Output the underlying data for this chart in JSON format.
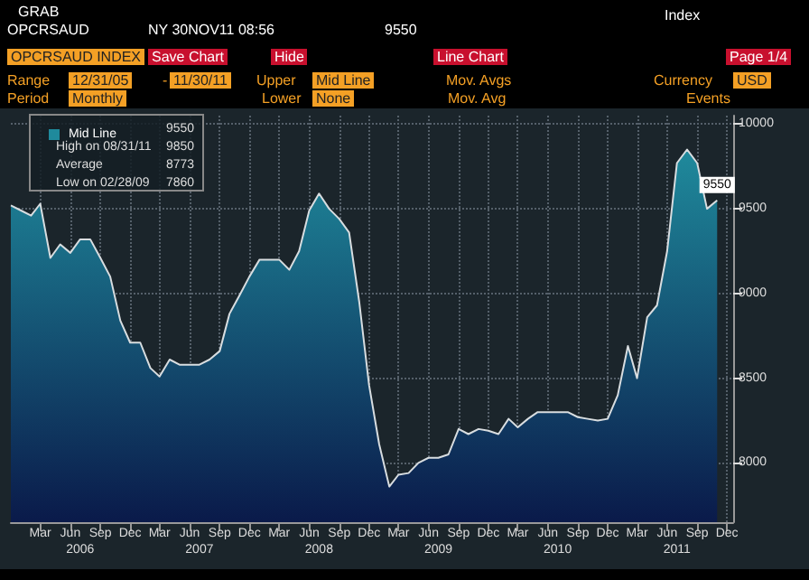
{
  "chart_data": {
    "type": "area",
    "title": "OPCRSAUD INDEX",
    "annotations": [
      "GRAB",
      "OPCRSAUD",
      "NY 30NOV11 08:56",
      "9550",
      "Index",
      "Save Chart",
      "Hide",
      "Line Chart",
      "Page 1/4",
      "Range",
      "12/31/05",
      "-",
      "11/30/11",
      "Upper",
      "Mid Line",
      "Mov. Avgs",
      "Currency",
      "USD",
      "Period",
      "Monthly",
      "Lower",
      "None",
      "Mov. Avg",
      "Events",
      "9550",
      "High on 08/31/11",
      "9850",
      "Average",
      "8773",
      "Low on 02/28/09",
      "7860"
    ],
    "x": [
      "2005-12",
      "2006-01",
      "2006-02",
      "2006-03",
      "2006-04",
      "2006-05",
      "2006-06",
      "2006-07",
      "2006-08",
      "2006-09",
      "2006-10",
      "2006-11",
      "2006-12",
      "2007-01",
      "2007-02",
      "2007-03",
      "2007-04",
      "2007-05",
      "2007-06",
      "2007-07",
      "2007-08",
      "2007-09",
      "2007-10",
      "2007-11",
      "2007-12",
      "2008-01",
      "2008-02",
      "2008-03",
      "2008-04",
      "2008-05",
      "2008-06",
      "2008-07",
      "2008-08",
      "2008-09",
      "2008-10",
      "2008-11",
      "2008-12",
      "2009-01",
      "2009-02",
      "2009-03",
      "2009-04",
      "2009-05",
      "2009-06",
      "2009-07",
      "2009-08",
      "2009-09",
      "2009-10",
      "2009-11",
      "2009-12",
      "2010-01",
      "2010-02",
      "2010-03",
      "2010-04",
      "2010-05",
      "2010-06",
      "2010-07",
      "2010-08",
      "2010-09",
      "2010-10",
      "2010-11",
      "2010-12",
      "2011-01",
      "2011-02",
      "2011-03",
      "2011-04",
      "2011-05",
      "2011-06",
      "2011-07",
      "2011-08",
      "2011-09",
      "2011-10",
      "2011-11"
    ],
    "series": [
      {
        "name": "Mid Line",
        "color": "#1f8a9c",
        "values": [
          9520,
          9490,
          9460,
          9530,
          9210,
          9290,
          9240,
          9320,
          9320,
          9210,
          9100,
          8840,
          8710,
          8710,
          8560,
          8510,
          8610,
          8580,
          8580,
          8580,
          8610,
          8660,
          8880,
          8990,
          9100,
          9200,
          9200,
          9200,
          9140,
          9250,
          9490,
          9590,
          9500,
          9440,
          9360,
          8950,
          8460,
          8110,
          7860,
          7930,
          7940,
          8000,
          8030,
          8030,
          8050,
          8200,
          8170,
          8200,
          8190,
          8170,
          8260,
          8210,
          8260,
          8300,
          8300,
          8300,
          8300,
          8270,
          8260,
          8250,
          8260,
          8400,
          8690,
          8500,
          8860,
          8930,
          9250,
          9770,
          9850,
          9770,
          9500,
          9550
        ],
        "value_labels": [
          null,
          null,
          null,
          null,
          null,
          null,
          null,
          null,
          null,
          null,
          null,
          null,
          null,
          null,
          null,
          null,
          null,
          null,
          null,
          null,
          null,
          null,
          null,
          null,
          null,
          null,
          null,
          null,
          null,
          null,
          null,
          null,
          null,
          null,
          null,
          null,
          null,
          null,
          null,
          null,
          null,
          null,
          null,
          null,
          null,
          null,
          null,
          null,
          null,
          null,
          null,
          null,
          null,
          null,
          null,
          null,
          null,
          null,
          null,
          null,
          null,
          null,
          null,
          null,
          null,
          null,
          null,
          null,
          null,
          null,
          null,
          "9550"
        ]
      }
    ],
    "xlim": [
      "2005-12",
      "2011-12-20"
    ],
    "xticks": [
      {
        "value": "2006-03",
        "label": "Mar"
      },
      {
        "value": "2006-06",
        "label": "Jun"
      },
      {
        "value": "2006-09",
        "label": "Sep"
      },
      {
        "value": "2006-12",
        "label": "Dec"
      },
      {
        "value": "2007-03",
        "label": "Mar"
      },
      {
        "value": "2007-06",
        "label": "Jun"
      },
      {
        "value": "2007-09",
        "label": "Sep"
      },
      {
        "value": "2007-12",
        "label": "Dec"
      },
      {
        "value": "2008-03",
        "label": "Mar"
      },
      {
        "value": "2008-06",
        "label": "Jun"
      },
      {
        "value": "2008-09",
        "label": "Sep"
      },
      {
        "value": "2008-12",
        "label": "Dec"
      },
      {
        "value": "2009-03",
        "label": "Mar"
      },
      {
        "value": "2009-06",
        "label": "Jun"
      },
      {
        "value": "2009-09",
        "label": "Sep"
      },
      {
        "value": "2009-12",
        "label": "Dec"
      },
      {
        "value": "2010-03",
        "label": "Mar"
      },
      {
        "value": "2010-06",
        "label": "Jun"
      },
      {
        "value": "2010-09",
        "label": "Sep"
      },
      {
        "value": "2010-12",
        "label": "Dec"
      },
      {
        "value": "2011-03",
        "label": "Mar"
      },
      {
        "value": "2011-06",
        "label": "Jun"
      },
      {
        "value": "2011-09",
        "label": "Sep"
      },
      {
        "value": "2011-12",
        "label": "Dec"
      }
    ],
    "x2lim": [
      "2005-12",
      "2011-12-20"
    ],
    "x2ticks": [
      {
        "value": "2006-07",
        "label": "2006"
      },
      {
        "value": "2007-07",
        "label": "2007"
      },
      {
        "value": "2008-07",
        "label": "2008"
      },
      {
        "value": "2009-07",
        "label": "2009"
      },
      {
        "value": "2010-07",
        "label": "2010"
      },
      {
        "value": "2011-07",
        "label": "2011"
      }
    ],
    "ylim": [
      7650,
      10050
    ],
    "yticks": [
      8000,
      8500,
      9000,
      9500,
      10000
    ],
    "grid": true,
    "legend": "top left"
  }
}
